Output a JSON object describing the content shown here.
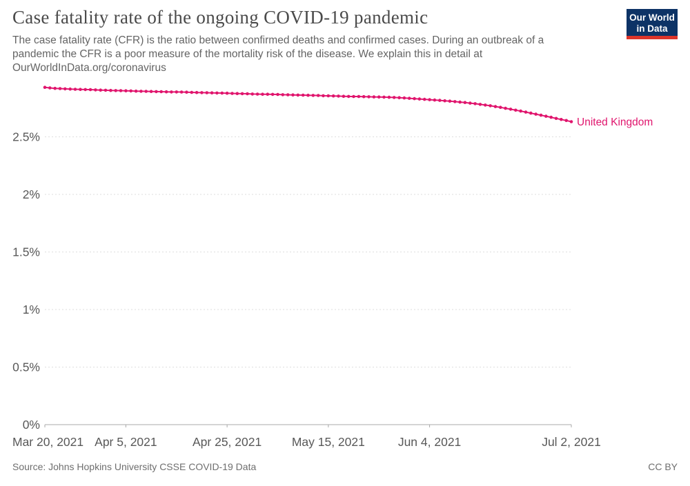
{
  "header": {
    "title": "Case fatality rate of the ongoing COVID-19 pandemic",
    "subtitle_lines": [
      "The case fatality rate (CFR) is the ratio between confirmed deaths and confirmed cases. During an outbreak of a",
      "pandemic the CFR is a poor measure of the mortality risk of the disease. We explain this in detail at",
      "OurWorldInData.org/coronavirus"
    ],
    "logo": {
      "line1": "Our World",
      "line2": "in Data",
      "bg_color": "#0d3366",
      "stripe_color": "#dd352a",
      "text_color": "#ffffff"
    }
  },
  "chart_data": {
    "type": "line",
    "title": "Case fatality rate of the ongoing COVID-19 pandemic",
    "xlabel": "",
    "ylabel": "",
    "ylim": [
      0,
      3
    ],
    "grid": "dashed-horizontal",
    "legend_position": "end-of-line",
    "y_ticks": [
      {
        "label": "0%",
        "value": 0
      },
      {
        "label": "0.5%",
        "value": 0.5
      },
      {
        "label": "1%",
        "value": 1
      },
      {
        "label": "1.5%",
        "value": 1.5
      },
      {
        "label": "2%",
        "value": 2
      },
      {
        "label": "2.5%",
        "value": 2.5
      }
    ],
    "x_ticks": [
      {
        "label": "Mar 20, 2021",
        "day": 0
      },
      {
        "label": "Apr 5, 2021",
        "day": 16
      },
      {
        "label": "Apr 25, 2021",
        "day": 36
      },
      {
        "label": "May 15, 2021",
        "day": 56
      },
      {
        "label": "Jun 4, 2021",
        "day": 76
      },
      {
        "label": "Jul 2, 2021",
        "day": 104
      }
    ],
    "x_total_days": 104,
    "colors": {
      "grid": "#dddddd",
      "axis": "#a8a8a8",
      "tick_text": "#585858"
    },
    "series": [
      {
        "name": "United Kingdom",
        "color": "#e0156d",
        "unit": "%",
        "values_percent": [
          2.93,
          2.925,
          2.921,
          2.919,
          2.917,
          2.915,
          2.913,
          2.912,
          2.911,
          2.91,
          2.908,
          2.906,
          2.905,
          2.903,
          2.902,
          2.901,
          2.9,
          2.899,
          2.897,
          2.896,
          2.895,
          2.894,
          2.893,
          2.892,
          2.891,
          2.89,
          2.89,
          2.889,
          2.888,
          2.886,
          2.885,
          2.884,
          2.883,
          2.882,
          2.881,
          2.88,
          2.879,
          2.877,
          2.876,
          2.875,
          2.874,
          2.872,
          2.871,
          2.87,
          2.87,
          2.869,
          2.868,
          2.866,
          2.865,
          2.864,
          2.863,
          2.862,
          2.861,
          2.86,
          2.859,
          2.857,
          2.856,
          2.855,
          2.854,
          2.852,
          2.851,
          2.85,
          2.85,
          2.849,
          2.848,
          2.847,
          2.846,
          2.845,
          2.844,
          2.842,
          2.84,
          2.838,
          2.835,
          2.832,
          2.829,
          2.826,
          2.823,
          2.82,
          2.817,
          2.813,
          2.81,
          2.806,
          2.802,
          2.798,
          2.793,
          2.788,
          2.782,
          2.776,
          2.77,
          2.763,
          2.756,
          2.748,
          2.74,
          2.732,
          2.724,
          2.715,
          2.706,
          2.697,
          2.688,
          2.679,
          2.67,
          2.66,
          2.651,
          2.642,
          2.632
        ]
      }
    ]
  },
  "footer": {
    "source": "Source: Johns Hopkins University CSSE COVID-19 Data",
    "license": "CC BY"
  }
}
